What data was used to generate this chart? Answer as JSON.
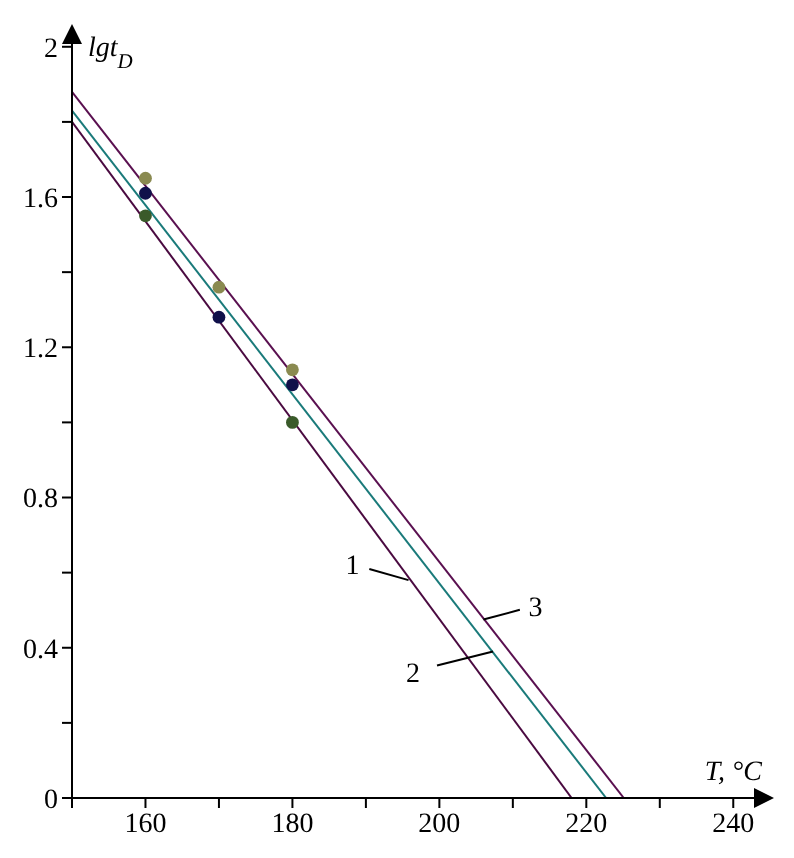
{
  "chart_data": {
    "type": "line",
    "xlabel": "T, °C",
    "ylabel": "lgt$_{D}$",
    "xlim": [
      150,
      245
    ],
    "ylim": [
      0,
      2.05
    ],
    "xticks": [
      {
        "value": 150,
        "label": null
      },
      160,
      {
        "value": 170,
        "label": null
      },
      180,
      {
        "value": 190,
        "label": null
      },
      200,
      {
        "value": 210,
        "label": null
      },
      220,
      {
        "value": 230,
        "label": null
      },
      240
    ],
    "yticks": [
      0,
      {
        "value": 0.2,
        "label": null
      },
      0.4,
      {
        "value": 0.6,
        "label": null
      },
      0.8,
      {
        "value": 1.0,
        "label": null
      },
      1.2,
      {
        "value": 1.4,
        "label": null
      },
      1.6,
      {
        "value": 1.8,
        "label": null
      },
      2
    ],
    "marker": "none",
    "line_style": "solid",
    "series": [
      {
        "type": "line",
        "color": "#4a0a40",
        "x": [
          150,
          218
        ],
        "values": [
          1.8,
          0
        ]
      },
      {
        "type": "line",
        "color": "#1a7a7a",
        "x": [
          150,
          222.7
        ],
        "values": [
          1.83,
          0
        ]
      },
      {
        "type": "line",
        "color": "#5a1050",
        "x": [
          150,
          225.1
        ],
        "values": [
          1.88,
          0
        ]
      },
      {
        "type": "scatter",
        "marker": "circle",
        "color": "#8a8a50",
        "x": [
          160,
          170,
          180
        ],
        "values": [
          1.65,
          1.36,
          1.14
        ]
      },
      {
        "type": "scatter",
        "marker": "circle",
        "color": "#10104a",
        "x": [
          160,
          170,
          180
        ],
        "values": [
          1.61,
          1.28,
          1.1
        ]
      },
      {
        "type": "scatter",
        "marker": "circle",
        "color": "#3a5a2a",
        "x": [
          160,
          170,
          180
        ],
        "values": [
          1.55,
          null,
          1.0
        ]
      }
    ],
    "annotations": [
      {
        "text": "1",
        "x": 195.8,
        "y": 0.58
      },
      {
        "text": "2",
        "x": 207.3,
        "y": 0.39
      },
      {
        "text": "3",
        "x": 206,
        "y": 0.475
      }
    ]
  }
}
